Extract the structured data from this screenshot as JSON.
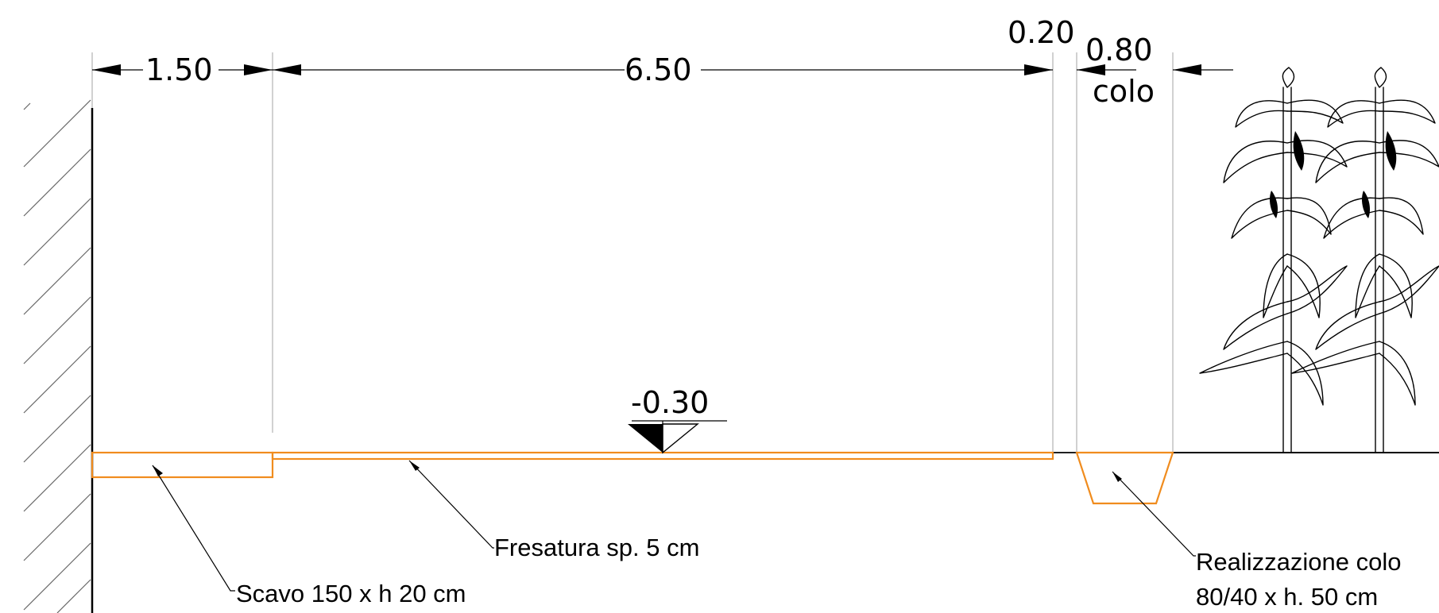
{
  "dimensions": {
    "d1": "1.50",
    "d2": "6.50",
    "d3": "0.20",
    "d4": "0.80",
    "d4_sub": "colo",
    "level": "-0.30"
  },
  "labels": {
    "fresatura": "Fresatura sp. 5 cm",
    "scavo": "Scavo 150 x h 20 cm",
    "colo_line1": "Realizzazione colo",
    "colo_line2": "80/40 x h. 50 cm"
  },
  "colors": {
    "excavation_outline": "#f08c1e",
    "lines": "#000000",
    "extension_lines": "#b8b8b8"
  }
}
